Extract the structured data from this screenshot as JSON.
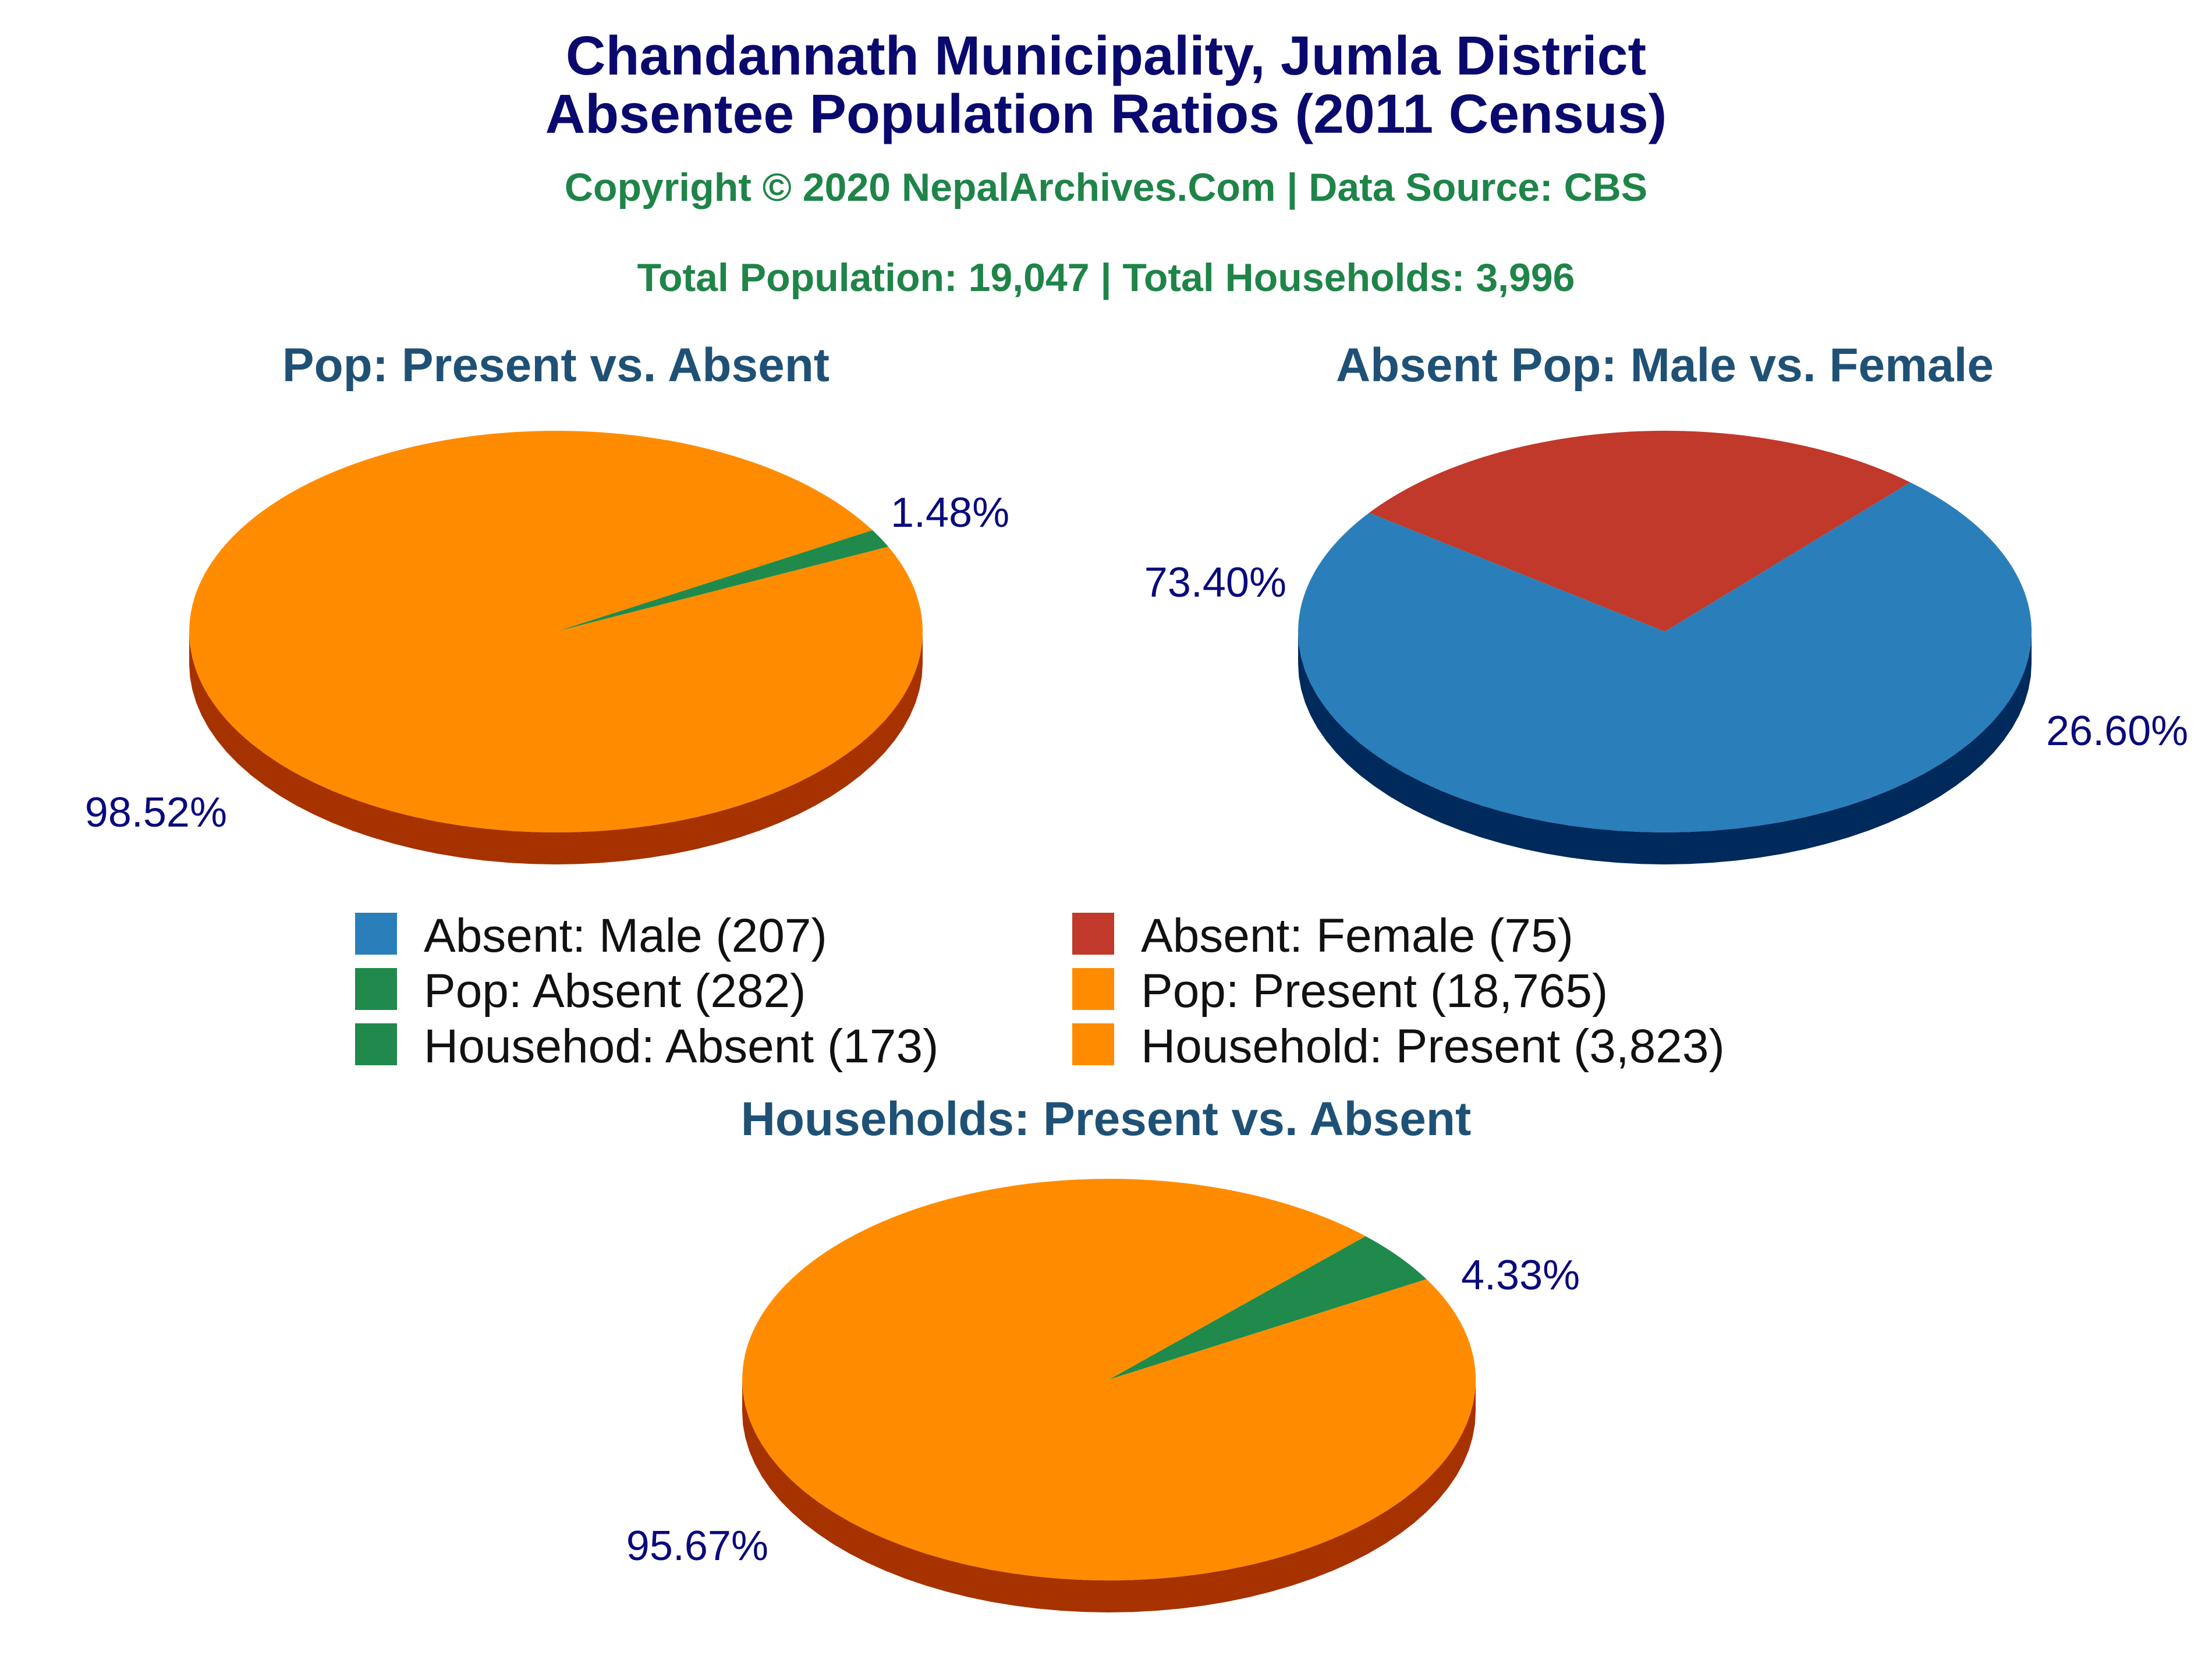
{
  "title_line1": "Chandannath Municipality, Jumla District",
  "title_line2": "Absentee Population Ratios (2011 Census)",
  "copyright": "Copyright © 2020 NepalArchives.Com | Data Source: CBS",
  "totals": "Total Population: 19,047 | Total Households: 3,996",
  "legend": [
    {
      "label": "Absent: Male (207)",
      "color": "#2a7fba"
    },
    {
      "label": "Absent: Female (75)",
      "color": "#c0392b"
    },
    {
      "label": "Pop: Absent (282)",
      "color": "#1f8a4c"
    },
    {
      "label": "Pop: Present (18,765)",
      "color": "#ff8c00"
    },
    {
      "label": "Househod: Absent (173)",
      "color": "#1f8a4c"
    },
    {
      "label": "Household: Present (3,823)",
      "color": "#ff8c00"
    }
  ],
  "chart_data": [
    {
      "type": "pie",
      "title": "Pop: Present vs. Absent",
      "slices": [
        {
          "label": "Pop: Absent",
          "value": 282,
          "percent_label": "1.48%",
          "color": "#1f8a4c",
          "side_color": "#0f5c30"
        },
        {
          "label": "Pop: Present",
          "value": 18765,
          "percent_label": "98.52%",
          "color": "#ff8c00",
          "side_color": "#a63200"
        }
      ]
    },
    {
      "type": "pie",
      "title": "Absent Pop: Male vs. Female",
      "slices": [
        {
          "label": "Absent: Female",
          "value": 75,
          "percent_label": "26.60%",
          "color": "#c0392b",
          "side_color": "#6e0000"
        },
        {
          "label": "Absent: Male",
          "value": 207,
          "percent_label": "73.40%",
          "color": "#2a7fba",
          "side_color": "#00295c"
        }
      ]
    },
    {
      "type": "pie",
      "title": "Households: Present vs. Absent",
      "slices": [
        {
          "label": "Househod: Absent",
          "value": 173,
          "percent_label": "4.33%",
          "color": "#1f8a4c",
          "side_color": "#0f5c30"
        },
        {
          "label": "Household: Present",
          "value": 3823,
          "percent_label": "95.67%",
          "color": "#ff8c00",
          "side_color": "#a63200"
        }
      ]
    }
  ]
}
